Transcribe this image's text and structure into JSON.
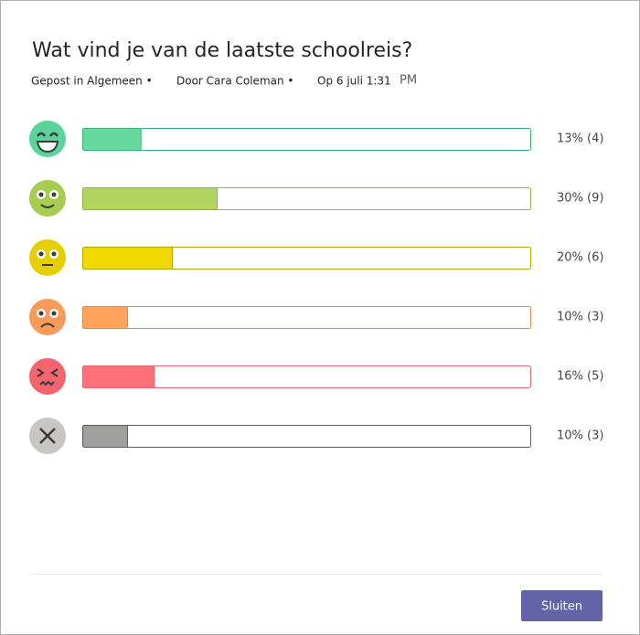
{
  "header": {
    "title": "Wat vind je van de laatste schoolreis?",
    "channel": "Gepost in Algemeen •",
    "author": "Door Cara Coleman •",
    "date": "Op 6 juli 1:31",
    "time_suffix": "PM"
  },
  "options": [
    {
      "percent": 13,
      "result_label": "13% (4)",
      "fill": "#66d9a0",
      "border": "#3cb371"
    },
    {
      "percent": 30,
      "result_label": "30% (9)",
      "fill": "#b0d45e",
      "border": "#92b04a"
    },
    {
      "percent": 20,
      "result_label": "20% (6)",
      "fill": "#f0d800",
      "border": "#b8a300"
    },
    {
      "percent": 10,
      "result_label": "10% (3)",
      "fill": "#ffa35c",
      "border": "#e08a4a"
    },
    {
      "percent": 16,
      "result_label": "16% (5)",
      "fill": "#ff7079",
      "border": "#e06670"
    },
    {
      "percent": 10,
      "result_label": "10% (3)",
      "fill": "#a19f9d",
      "border": "#605e5c"
    }
  ],
  "footer": {
    "button": "Sluiten"
  }
}
